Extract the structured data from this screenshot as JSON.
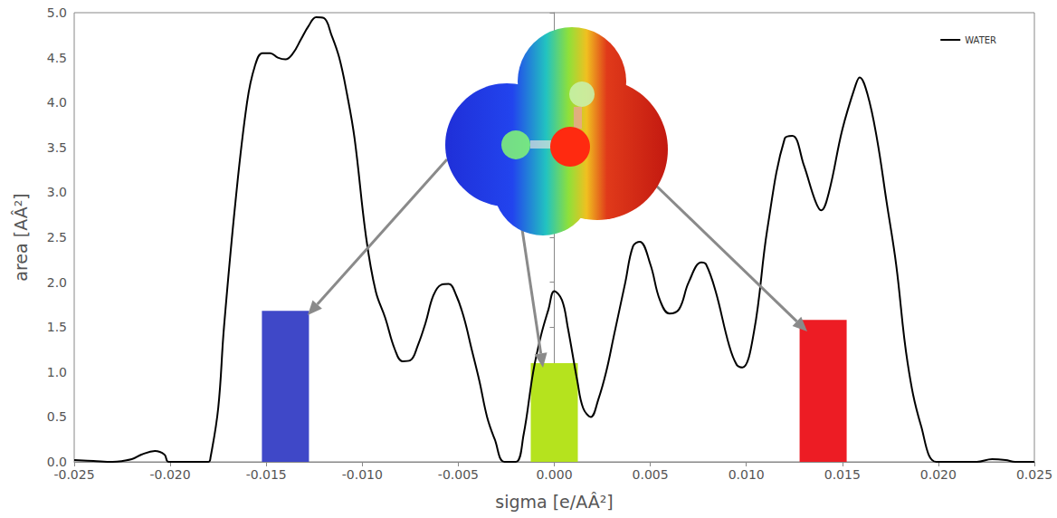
{
  "chart_data": {
    "type": "line",
    "x_label": "sigma [e/AÂ²]",
    "y_label": "area [AÂ²]",
    "xlim": [
      -0.025,
      0.025
    ],
    "xticks": [
      -0.025,
      {
        "value": -0.02,
        "label": "-0.020"
      },
      -0.015,
      {
        "value": -0.01,
        "label": "-0.010"
      },
      -0.005,
      {
        "value": 0,
        "label": "0.000"
      },
      0.005,
      {
        "value": 0.01,
        "label": "0.010"
      },
      0.015,
      {
        "value": 0.02,
        "label": "0.020"
      },
      0.025
    ],
    "ylim": [
      0,
      5
    ],
    "yticks": [
      {
        "value": 0,
        "label": "0.0"
      },
      0.5,
      {
        "value": 1,
        "label": "1.0"
      },
      1.5,
      {
        "value": 2,
        "label": "2.0"
      },
      2.5,
      {
        "value": 3,
        "label": "3.0"
      },
      3.5,
      {
        "value": 4,
        "label": "4.0"
      },
      4.5,
      {
        "value": 5,
        "label": "5.0"
      }
    ],
    "grid": false,
    "legend": "top-right",
    "series": [
      {
        "name": "WATER",
        "type": "line",
        "color": "#000000",
        "x": [
          -0.025,
          -0.024,
          -0.023,
          -0.022,
          -0.0215,
          -0.0208,
          -0.0203,
          -0.0201,
          -0.0195,
          -0.018,
          -0.0179,
          -0.0175,
          -0.0172,
          -0.0166,
          -0.016,
          -0.0156,
          -0.0152,
          -0.0148,
          -0.0144,
          -0.014,
          -0.0136,
          -0.0132,
          -0.0128,
          -0.0124,
          -0.012,
          -0.0116,
          -0.0112,
          -0.0108,
          -0.0104,
          -0.0098,
          -0.0093,
          -0.0088,
          -0.0083,
          -0.0079,
          -0.0075,
          -0.0071,
          -0.0067,
          -0.0063,
          -0.0059,
          -0.0055,
          -0.0051,
          -0.0047,
          -0.0043,
          -0.0039,
          -0.0035,
          -0.0031,
          -0.0026,
          -0.002,
          -0.0016,
          -0.0011,
          -0.0007,
          -0.0003,
          0,
          0.0004,
          0.0007,
          0.0012,
          0.0015,
          0.0019,
          0.0023,
          0.0027,
          0.0031,
          0.0037,
          0.0041,
          0.00445,
          0.005,
          0.0055,
          0.006,
          0.0065,
          0.007,
          0.00766,
          0.0079,
          0.0084,
          0.0091,
          0.0095,
          0.0098,
          0.0104,
          0.0111,
          0.012,
          0.0124,
          0.013,
          0.0136,
          0.0139,
          0.0143,
          0.015,
          0.0157,
          0.0159,
          0.0163,
          0.0168,
          0.0173,
          0.0178,
          0.0184,
          0.0191,
          0.0199,
          0.021,
          0.022,
          0.0228,
          0.0235,
          0.024,
          0.025
        ],
        "values": [
          0.02,
          0.01,
          0,
          0.03,
          0.08,
          0.12,
          0.08,
          0,
          0,
          0,
          0.05,
          0.6,
          1.5,
          2.9,
          4.0,
          4.4,
          4.55,
          4.55,
          4.5,
          4.48,
          4.55,
          4.7,
          4.85,
          4.95,
          4.94,
          4.75,
          4.5,
          4.1,
          3.6,
          2.5,
          1.9,
          1.6,
          1.25,
          1.12,
          1.13,
          1.3,
          1.55,
          1.85,
          1.97,
          1.98,
          1.85,
          1.6,
          1.25,
          0.9,
          0.5,
          0.25,
          0,
          0,
          0.3,
          1.0,
          1.4,
          1.7,
          1.9,
          1.8,
          1.5,
          0.9,
          0.6,
          0.5,
          0.7,
          1.0,
          1.4,
          2.0,
          2.4,
          2.45,
          2.2,
          1.8,
          1.65,
          1.7,
          2.0,
          2.22,
          2.2,
          1.9,
          1.3,
          1.08,
          1.05,
          1.45,
          2.6,
          3.6,
          3.63,
          3.3,
          2.9,
          2.8,
          3.0,
          3.7,
          4.2,
          4.28,
          4.1,
          3.6,
          2.9,
          2.2,
          1.1,
          0.4,
          0,
          0,
          0,
          0.03,
          0.02,
          0,
          0
        ]
      },
      {
        "type": "bar",
        "colors": [
          "#3f48c8",
          "#b5e31e",
          "#ed1c24"
        ],
        "x": [
          -0.014,
          0,
          0.014
        ],
        "values": [
          1.68,
          1.1,
          1.58
        ]
      }
    ]
  }
}
